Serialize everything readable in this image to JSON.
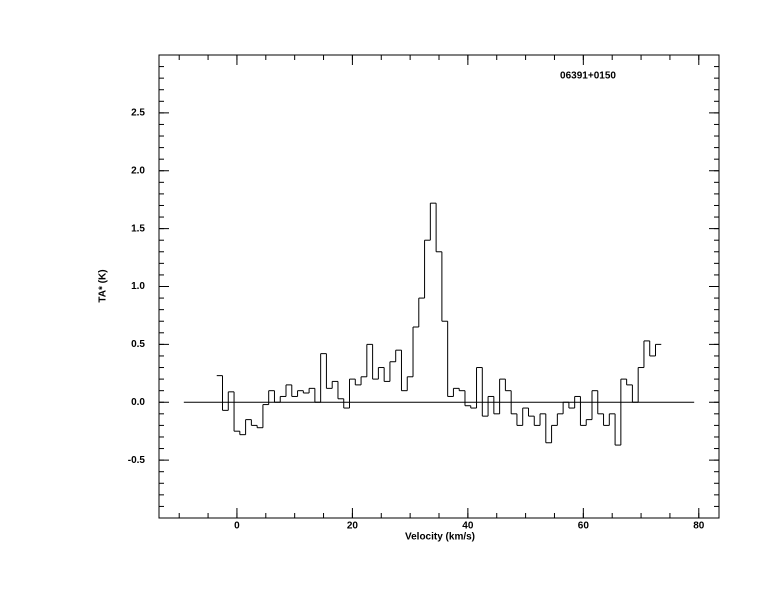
{
  "chart_data": {
    "type": "step",
    "annotation": "06391+0150",
    "xlabel": "Velocity (km/s)",
    "ylabel": "TA* (K)",
    "xlim": [
      -13.5,
      83.5
    ],
    "ylim": [
      -1.0,
      3.0
    ],
    "xticks": [
      0,
      20,
      40,
      60,
      80
    ],
    "yticks": [
      -0.5,
      {
        "value": 0,
        "label": "0.0"
      },
      0.5,
      {
        "value": 1,
        "label": "1.0"
      },
      1.5,
      {
        "value": 2,
        "label": "2.0"
      },
      2.5
    ],
    "x_minor_divisions": 4,
    "y_minor_divisions": 5,
    "color": "#000000",
    "baseline": {
      "x": [
        -9.2,
        79.2
      ],
      "y": [
        0,
        0
      ]
    },
    "x": [
      -3,
      -2,
      -1,
      0,
      1,
      2,
      3,
      4,
      5,
      6,
      7,
      8,
      9,
      10,
      11,
      12,
      13,
      14,
      15,
      16,
      17,
      18,
      19,
      20,
      21,
      22,
      23,
      24,
      25,
      26,
      27,
      28,
      29,
      30,
      31,
      32,
      33,
      34,
      35,
      36,
      37,
      38,
      39,
      40,
      41,
      42,
      43,
      44,
      45,
      46,
      47,
      48,
      49,
      50,
      51,
      52,
      53,
      54,
      55,
      56,
      57,
      58,
      59,
      60,
      61,
      62,
      63,
      64,
      65,
      66,
      67,
      68,
      69,
      70,
      71,
      72,
      73
    ],
    "values": [
      0.23,
      -0.07,
      0.09,
      -0.25,
      -0.28,
      -0.15,
      -0.2,
      -0.22,
      -0.02,
      0.1,
      0.0,
      0.05,
      0.15,
      0.05,
      0.1,
      0.08,
      0.12,
      0.0,
      0.42,
      0.12,
      0.18,
      0.03,
      -0.05,
      0.2,
      0.15,
      0.22,
      0.5,
      0.2,
      0.3,
      0.18,
      0.35,
      0.45,
      0.1,
      0.22,
      0.65,
      0.9,
      1.4,
      1.72,
      1.3,
      0.7,
      0.05,
      0.12,
      0.1,
      -0.03,
      -0.05,
      0.3,
      -0.12,
      0.05,
      -0.1,
      0.2,
      0.1,
      -0.1,
      -0.2,
      -0.05,
      -0.12,
      -0.2,
      -0.1,
      -0.35,
      -0.2,
      -0.1,
      0.0,
      -0.05,
      0.05,
      -0.2,
      -0.15,
      0.1,
      -0.1,
      -0.2,
      -0.1,
      -0.37,
      0.2,
      0.15,
      0.0,
      0.3,
      0.53,
      0.4,
      0.5
    ]
  }
}
